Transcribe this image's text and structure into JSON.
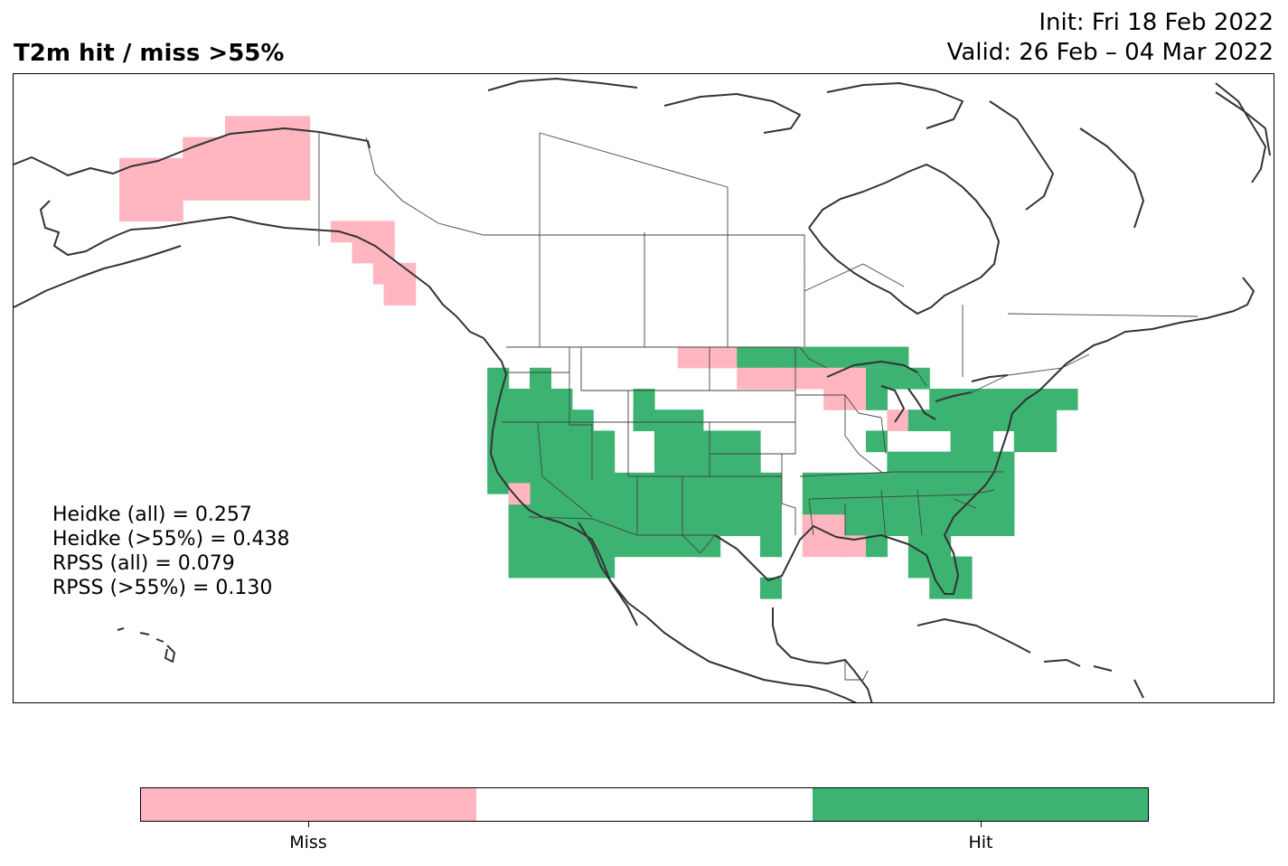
{
  "header": {
    "title": "T2m hit / miss  >55%",
    "init": "Init: Fri 18 Feb 2022",
    "valid": "Valid: 26 Feb – 04 Mar 2022"
  },
  "scores": [
    "Heidke (all) = 0.257",
    "Heidke (>55%) = 0.438",
    "RPSS (all) = 0.079",
    "RPSS (>55%) = 0.130"
  ],
  "colors": {
    "miss": "#ffb6c1",
    "neutral": "#ffffff",
    "hit": "#3cb371",
    "coast": "#333333"
  },
  "colorbar": {
    "labels": [
      "Miss",
      "Hit"
    ]
  }
}
